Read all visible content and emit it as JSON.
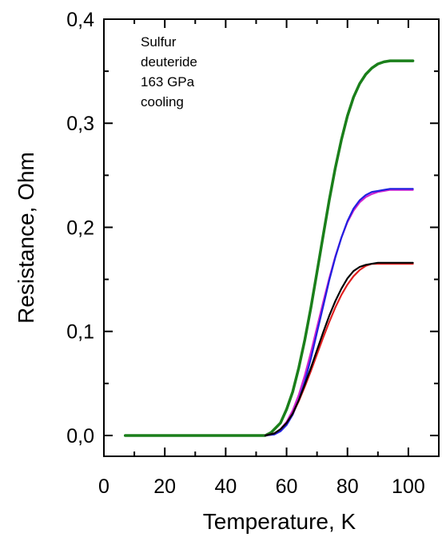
{
  "chart_data": {
    "type": "line",
    "xlabel": "Temperature, K",
    "ylabel": "Resistance, Ohm",
    "xlim": [
      0,
      110
    ],
    "ylim": [
      -0.02,
      0.4
    ],
    "x_ticks": [
      0,
      20,
      40,
      60,
      80,
      100
    ],
    "x_tick_labels": [
      "0",
      "20",
      "40",
      "60",
      "80",
      "100"
    ],
    "y_ticks": [
      0.0,
      0.1,
      0.2,
      0.3,
      0.4
    ],
    "y_tick_labels": [
      "0,0",
      "0,1",
      "0,2",
      "0,3",
      "0,4"
    ],
    "annotation": [
      "Sulfur",
      "deuteride",
      "163 GPa",
      "cooling"
    ],
    "grid": false,
    "series": [
      {
        "color": "#1a7f1a",
        "x": [
          7,
          20,
          40,
          50,
          53,
          55,
          58,
          60,
          62,
          64,
          66,
          68,
          70,
          72,
          74,
          76,
          78,
          80,
          82,
          84,
          86,
          88,
          90,
          92,
          94,
          96,
          98,
          100,
          101.5
        ],
        "y": [
          0.0,
          0.0,
          0.0,
          0.0,
          0.0,
          0.003,
          0.012,
          0.025,
          0.042,
          0.065,
          0.092,
          0.123,
          0.157,
          0.192,
          0.226,
          0.257,
          0.284,
          0.307,
          0.325,
          0.338,
          0.347,
          0.353,
          0.357,
          0.359,
          0.36,
          0.36,
          0.36,
          0.36,
          0.36
        ]
      },
      {
        "color": "#d020d0",
        "x": [
          53,
          56,
          58,
          60,
          62,
          64,
          66,
          68,
          70,
          72,
          74,
          76,
          78,
          80,
          82,
          84,
          86,
          88,
          90,
          92,
          94,
          96,
          98,
          100,
          101.5
        ],
        "y": [
          0.0,
          0.002,
          0.006,
          0.013,
          0.024,
          0.039,
          0.058,
          0.08,
          0.104,
          0.128,
          0.151,
          0.172,
          0.19,
          0.205,
          0.216,
          0.224,
          0.229,
          0.232,
          0.234,
          0.235,
          0.236,
          0.236,
          0.236,
          0.236,
          0.236
        ]
      },
      {
        "color": "#2020e0",
        "x": [
          53,
          56,
          58,
          60,
          62,
          64,
          66,
          68,
          70,
          72,
          74,
          76,
          78,
          80,
          82,
          84,
          86,
          88,
          90,
          92,
          94,
          96,
          98,
          100,
          101.5
        ],
        "y": [
          0.0,
          0.001,
          0.004,
          0.01,
          0.02,
          0.034,
          0.052,
          0.074,
          0.099,
          0.124,
          0.149,
          0.171,
          0.19,
          0.206,
          0.218,
          0.226,
          0.231,
          0.234,
          0.235,
          0.236,
          0.237,
          0.237,
          0.237,
          0.237,
          0.237
        ]
      },
      {
        "color": "#e02020",
        "x": [
          53,
          56,
          58,
          60,
          62,
          64,
          66,
          68,
          70,
          72,
          74,
          76,
          78,
          80,
          82,
          84,
          86,
          88,
          90,
          92,
          94,
          96,
          98,
          100,
          101.5
        ],
        "y": [
          0.0,
          0.002,
          0.006,
          0.012,
          0.021,
          0.033,
          0.047,
          0.062,
          0.078,
          0.094,
          0.109,
          0.123,
          0.135,
          0.145,
          0.153,
          0.159,
          0.163,
          0.165,
          0.165,
          0.165,
          0.165,
          0.165,
          0.165,
          0.165,
          0.165
        ]
      },
      {
        "color": "#000000",
        "x": [
          53,
          56,
          58,
          60,
          62,
          64,
          66,
          68,
          70,
          72,
          74,
          76,
          78,
          80,
          82,
          84,
          86,
          88,
          90,
          92,
          94,
          96,
          98,
          100,
          101.5
        ],
        "y": [
          0.0,
          0.002,
          0.006,
          0.012,
          0.021,
          0.034,
          0.049,
          0.065,
          0.082,
          0.099,
          0.115,
          0.129,
          0.141,
          0.151,
          0.158,
          0.162,
          0.164,
          0.165,
          0.166,
          0.166,
          0.166,
          0.166,
          0.166,
          0.166,
          0.166
        ]
      }
    ]
  }
}
